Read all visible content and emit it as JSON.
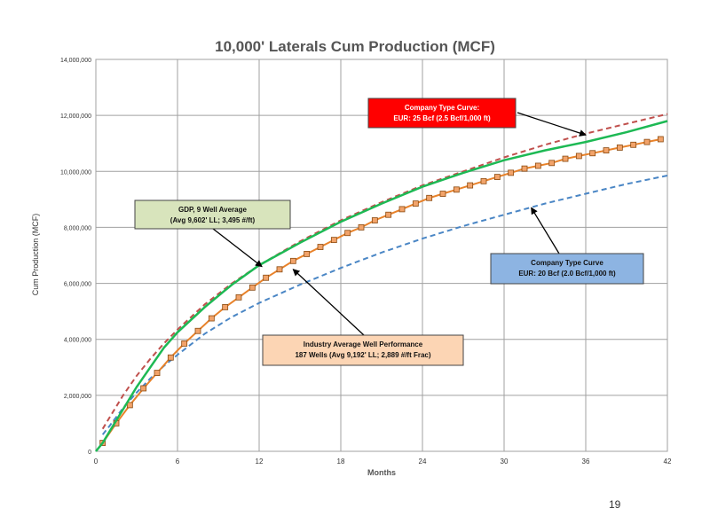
{
  "slide": {
    "page_number": "19"
  },
  "colors": {
    "gdp": "#1db954",
    "industry": "#e8822a",
    "industry_marker_fill": "#f2a36a",
    "industry_marker_stroke": "#8a4a10",
    "type_25": "#c0504d",
    "type_20": "#4a86c5",
    "grid": "#a0a0a0",
    "box_red": "#ff0000",
    "box_green": "#d8e4bc",
    "box_blue": "#8db4e2",
    "box_orange": "#fcd5b4"
  },
  "chart_data": {
    "type": "line",
    "title": "10,000' Laterals Cum Production (MCF)",
    "xlabel": "Months",
    "ylabel": "Cum Production (MCF)",
    "xlim": [
      0,
      42
    ],
    "ylim": [
      0,
      14000000
    ],
    "x_ticks": [
      "0",
      "6",
      "12",
      "18",
      "24",
      "30",
      "36",
      "42"
    ],
    "y_ticks": [
      "0",
      "2,000,000",
      "4,000,000",
      "6,000,000",
      "8,000,000",
      "10,000,000",
      "12,000,000",
      "14,000,000"
    ],
    "grid": true,
    "series": [
      {
        "key": "gdp",
        "style": "solid",
        "x": [
          0,
          0.5,
          1,
          2,
          3,
          4,
          5,
          6,
          8,
          10,
          12,
          15,
          18,
          21,
          24,
          27,
          30,
          33,
          36,
          39,
          42
        ],
        "y": [
          0,
          300000,
          700000,
          1500000,
          2300000,
          3000000,
          3700000,
          4250000,
          5150000,
          5950000,
          6650000,
          7450000,
          8200000,
          8850000,
          9450000,
          9950000,
          10400000,
          10750000,
          11050000,
          11400000,
          11800000
        ]
      },
      {
        "key": "type_25",
        "style": "dashed",
        "x": [
          0.5,
          1,
          2,
          3,
          4,
          5,
          6,
          8,
          10,
          12,
          15,
          18,
          21,
          24,
          27,
          30,
          33,
          36,
          39,
          42
        ],
        "y": [
          800000,
          1200000,
          2000000,
          2700000,
          3300000,
          3850000,
          4350000,
          5250000,
          6000000,
          6650000,
          7500000,
          8250000,
          8900000,
          9500000,
          10000000,
          10500000,
          10950000,
          11350000,
          11700000,
          12050000
        ]
      },
      {
        "key": "type_20",
        "style": "dashed",
        "x": [
          0.5,
          1,
          2,
          3,
          4,
          5,
          6,
          8,
          10,
          12,
          15,
          18,
          21,
          24,
          27,
          30,
          33,
          36,
          39,
          42
        ],
        "y": [
          600000,
          900000,
          1550000,
          2100000,
          2600000,
          3050000,
          3450000,
          4200000,
          4800000,
          5300000,
          5950000,
          6550000,
          7100000,
          7600000,
          8050000,
          8450000,
          8850000,
          9200000,
          9550000,
          9850000
        ]
      },
      {
        "key": "industry",
        "style": "markers",
        "x": [
          0.5,
          1.5,
          2.5,
          3.5,
          4.5,
          5.5,
          6.5,
          7.5,
          8.5,
          9.5,
          10.5,
          11.5,
          12.5,
          13.5,
          14.5,
          15.5,
          16.5,
          17.5,
          18.5,
          19.5,
          20.5,
          21.5,
          22.5,
          23.5,
          24.5,
          25.5,
          26.5,
          27.5,
          28.5,
          29.5,
          30.5,
          31.5,
          32.5,
          33.5,
          34.5,
          35.5,
          36.5,
          37.5,
          38.5,
          39.5,
          40.5,
          41.5
        ],
        "y": [
          300000,
          1000000,
          1650000,
          2250000,
          2800000,
          3350000,
          3850000,
          4300000,
          4750000,
          5150000,
          5500000,
          5850000,
          6200000,
          6500000,
          6800000,
          7050000,
          7300000,
          7550000,
          7800000,
          8000000,
          8250000,
          8450000,
          8650000,
          8850000,
          9050000,
          9200000,
          9350000,
          9500000,
          9650000,
          9800000,
          9950000,
          10100000,
          10200000,
          10300000,
          10450000,
          10550000,
          10650000,
          10750000,
          10850000,
          10950000,
          11050000,
          11150000
        ]
      }
    ],
    "annotations": [
      {
        "key": "type_25",
        "line1": "Company Type Curve:",
        "line2": "EUR: 25 Bcf (2.5 Bcf/1,000 ft)",
        "arrow_to": [
          36,
          11300000
        ]
      },
      {
        "key": "gdp",
        "line1": "GDP, 9 Well Average",
        "line2": "(Avg 9,602' LL; 3,495 #/ft)",
        "arrow_to": [
          12.2,
          6600000
        ]
      },
      {
        "key": "type_20",
        "line1": "Company Type Curve",
        "line2": "EUR: 20 Bcf (2.0 Bcf/1,000 ft)",
        "arrow_to": [
          32,
          8700000
        ]
      },
      {
        "key": "industry",
        "line1": "Industry Average Well Performance",
        "line2": "187 Wells (Avg 9,192' LL; 2,889 #/ft Frac)",
        "arrow_to": [
          14.5,
          6500000
        ]
      }
    ]
  }
}
